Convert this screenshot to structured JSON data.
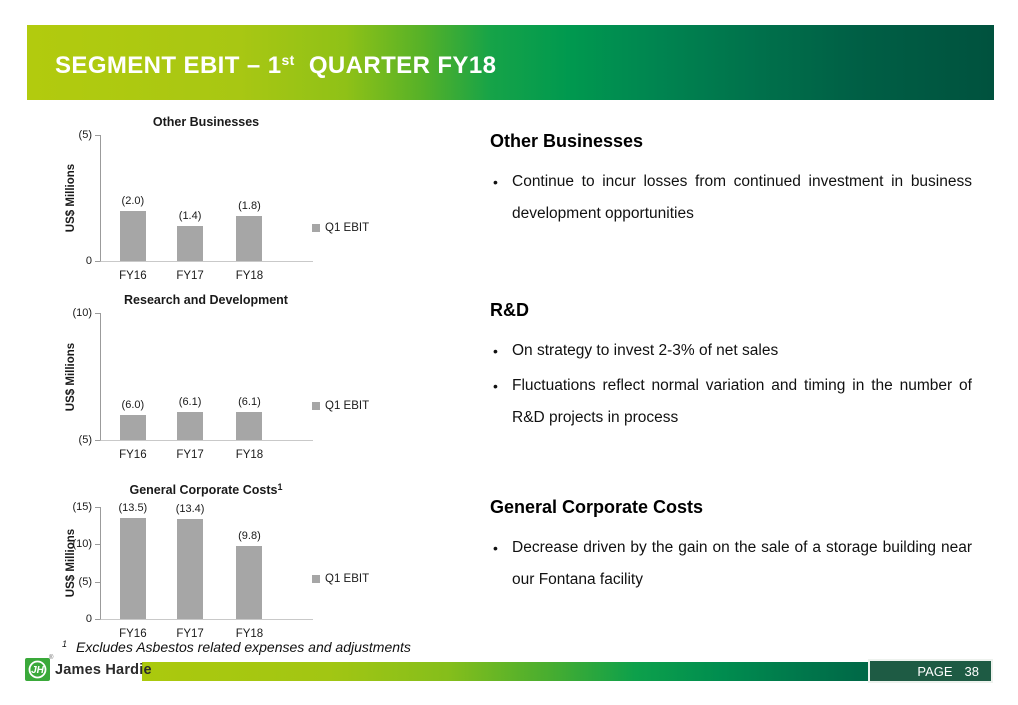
{
  "slide": {
    "title": {
      "prefix": "SEGMENT EBIT – 1",
      "sup": "st",
      "suffix": "  QUARTER FY18"
    },
    "footnote": {
      "sup": "1",
      "text": "Excludes Asbestos related expenses and adjustments"
    },
    "footer": {
      "logo_text": "James Hardie",
      "logo_reg_mark": "®",
      "page_label": "PAGE",
      "page_number": "38"
    },
    "colors": {
      "header_gradient_left": "#b2cb0e",
      "header_gradient_mid": "#0aa04a",
      "header_gradient_right": "#00523e",
      "footer_page_bg": "#1e5b44",
      "logo_green": "#3aa93a",
      "bar_gray": "#a6a6a6"
    }
  },
  "right_sections": [
    {
      "heading": "Other Businesses",
      "bullets": [
        "Continue to incur losses from continued investment in business development opportunities"
      ]
    },
    {
      "heading": "R&D",
      "bullets": [
        "On strategy to invest 2-3% of net sales",
        "Fluctuations reflect normal variation and timing in the number of R&D projects in process"
      ]
    },
    {
      "heading": "General Corporate Costs",
      "bullets": [
        "Decrease driven by the gain on the sale of a storage building near our Fontana facility"
      ]
    }
  ],
  "chart_data": [
    {
      "type": "bar",
      "title": "Other Businesses",
      "title_sup": "",
      "ylabel": "US$ Millions",
      "categories": [
        "FY16",
        "FY17",
        "FY18"
      ],
      "values": [
        2.0,
        1.4,
        1.8
      ],
      "value_labels": [
        "(2.0)",
        "(1.4)",
        "(1.8)"
      ],
      "axis": {
        "baseline": 0,
        "max": 5,
        "ticks": [
          {
            "label": "(5)",
            "value": 5
          },
          {
            "label": "0",
            "value": 0
          }
        ]
      },
      "legend": {
        "label": "Q1 EBIT",
        "color": "#a6a6a6"
      },
      "bar_color": "#a6a6a6",
      "grid": false,
      "legend_position": "right"
    },
    {
      "type": "bar",
      "title": "Research and Development",
      "title_sup": "",
      "ylabel": "US$ Millions",
      "categories": [
        "FY16",
        "FY17",
        "FY18"
      ],
      "values": [
        6.0,
        6.1,
        6.1
      ],
      "value_labels": [
        "(6.0)",
        "(6.1)",
        "(6.1)"
      ],
      "axis": {
        "baseline": 5,
        "max": 10,
        "ticks": [
          {
            "label": "(10)",
            "value": 10
          },
          {
            "label": "(5)",
            "value": 5
          }
        ]
      },
      "legend": {
        "label": "Q1 EBIT",
        "color": "#a6a6a6"
      },
      "bar_color": "#a6a6a6",
      "grid": false,
      "legend_position": "right"
    },
    {
      "type": "bar",
      "title": "General Corporate Costs",
      "title_sup": "1",
      "ylabel": "US$ Millions",
      "categories": [
        "FY16",
        "FY17",
        "FY18"
      ],
      "values": [
        13.5,
        13.4,
        9.8
      ],
      "value_labels": [
        "(13.5)",
        "(13.4)",
        "(9.8)"
      ],
      "axis": {
        "baseline": 0,
        "max": 15,
        "ticks": [
          {
            "label": "(15)",
            "value": 15
          },
          {
            "label": "(10)",
            "value": 10
          },
          {
            "label": "(5)",
            "value": 5
          },
          {
            "label": "0",
            "value": 0
          }
        ]
      },
      "legend": {
        "label": "Q1 EBIT",
        "color": "#a6a6a6"
      },
      "bar_color": "#a6a6a6",
      "grid": false,
      "legend_position": "right"
    }
  ]
}
